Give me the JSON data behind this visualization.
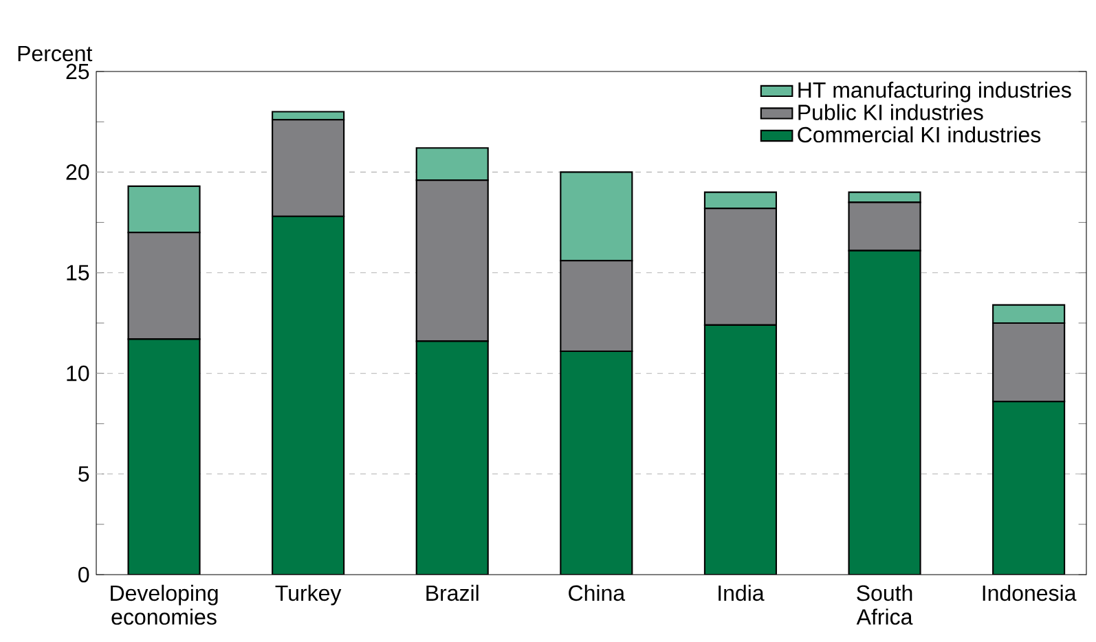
{
  "chart_data": {
    "type": "bar",
    "stacked": true,
    "ylabel": "Percent",
    "categories": [
      "Developing economies",
      "Turkey",
      "Brazil",
      "China",
      "India",
      "South Africa",
      "Indonesia"
    ],
    "series": [
      {
        "name": "Commercial KI industries",
        "color": "#007845",
        "values": [
          11.7,
          17.8,
          11.6,
          11.1,
          12.4,
          16.1,
          8.6
        ]
      },
      {
        "name": "Public KI industries",
        "color": "#808083",
        "values": [
          5.3,
          4.8,
          8.0,
          4.5,
          5.8,
          2.4,
          3.9
        ]
      },
      {
        "name": "HT manufacturing industries",
        "color": "#66b99a",
        "values": [
          2.3,
          0.4,
          1.6,
          4.4,
          0.8,
          0.5,
          0.9
        ]
      }
    ],
    "ylim": [
      0,
      25
    ],
    "yticks": [
      0,
      {
        "value": 2.5,
        "label": null
      },
      5,
      {
        "value": 7.5,
        "label": null
      },
      10,
      {
        "value": 12.5,
        "label": null
      },
      15,
      {
        "value": 17.5,
        "label": null
      },
      20,
      {
        "value": 22.5,
        "label": null
      },
      25
    ],
    "grid": "y",
    "legend": "top right"
  }
}
